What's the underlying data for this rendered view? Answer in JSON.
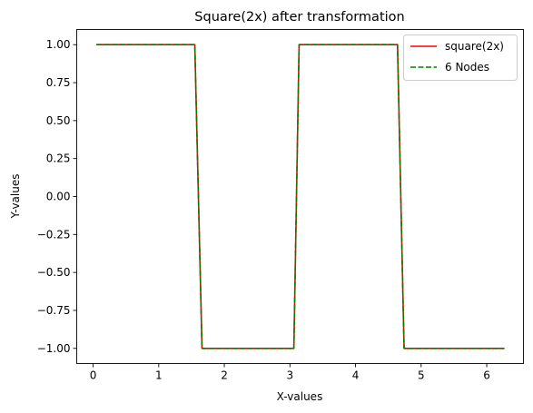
{
  "chart_data": {
    "type": "line",
    "title": "Square(2x) after transformation",
    "xlabel": "X-values",
    "ylabel": "Y-values",
    "xlim": [
      -0.25,
      6.56
    ],
    "ylim": [
      -1.1,
      1.1
    ],
    "xticks": [
      0,
      1,
      2,
      3,
      4,
      5,
      6
    ],
    "xtick_labels": [
      "0",
      "1",
      "2",
      "3",
      "4",
      "5",
      "6"
    ],
    "yticks": [
      1.0,
      0.75,
      0.5,
      0.25,
      0.0,
      -0.25,
      -0.5,
      -0.75,
      -1.0
    ],
    "ytick_labels": [
      "1.00",
      "0.75",
      "0.50",
      "0.25",
      "0.00",
      "−0.25",
      "−0.50",
      "−0.75",
      "−1.00"
    ],
    "grid": false,
    "legend_position": "top-right",
    "series": [
      {
        "name": "square(2x)",
        "color": "#ff0000",
        "style": "solid",
        "x": [
          0.05,
          1.55,
          1.66,
          3.06,
          3.14,
          4.64,
          4.74,
          6.27
        ],
        "y": [
          1,
          1,
          -1,
          -1,
          1,
          1,
          -1,
          -1
        ]
      },
      {
        "name": "6 Nodes",
        "color": "#008000",
        "style": "dashed",
        "x": [
          0.05,
          1.55,
          1.66,
          3.06,
          3.14,
          4.64,
          4.74,
          6.27
        ],
        "y": [
          1,
          1,
          -1,
          -1,
          1,
          1,
          -1,
          -1
        ]
      }
    ]
  }
}
